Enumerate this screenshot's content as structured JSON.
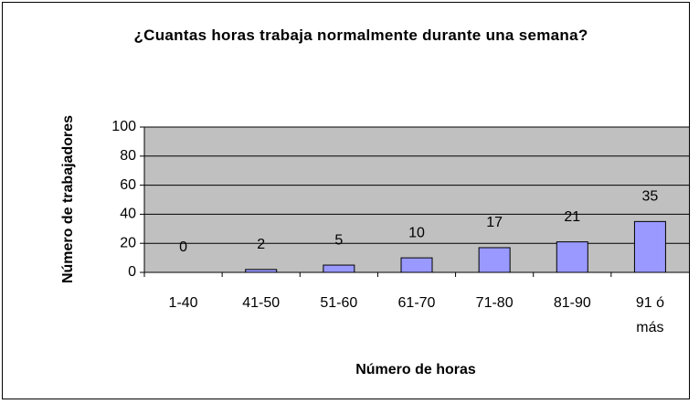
{
  "chart_data": {
    "type": "bar",
    "title": "¿Cuantas horas trabaja normalmente durante una semana?",
    "y_label": "Número de trabajadores",
    "x_label": "Número de horas",
    "categories": [
      "1-40",
      "41-50",
      "51-60",
      "61-70",
      "71-80",
      "81-90",
      "91 ó más"
    ],
    "values": [
      0,
      2,
      5,
      10,
      17,
      21,
      35
    ],
    "color": "#9999ff",
    "ylim": [
      0,
      100
    ],
    "yticks": [
      0,
      20,
      40,
      60,
      80,
      100
    ],
    "grid": true
  }
}
